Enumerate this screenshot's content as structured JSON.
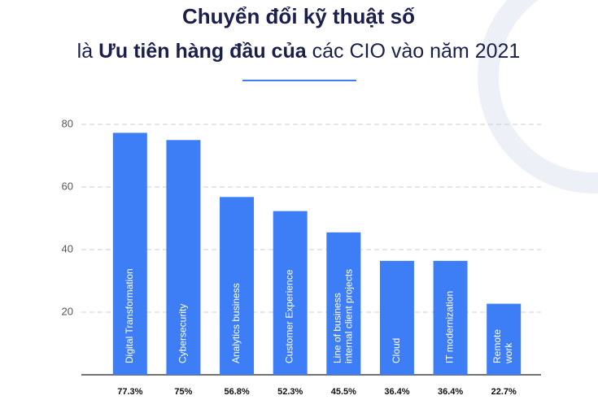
{
  "chart_data": {
    "type": "bar",
    "title": "Chuyển đổi kỹ thuật số",
    "subtitle_parts": [
      "là",
      "Ưu tiên hàng đầu của",
      "các CIO vào năm 2021"
    ],
    "categories": [
      [
        "Digital Transformation"
      ],
      [
        "Cybersecurity"
      ],
      [
        "Analytics business"
      ],
      [
        "Customer Experience"
      ],
      [
        "Line of business",
        "internal client projects"
      ],
      [
        "Cloud"
      ],
      [
        "IT modernization"
      ],
      [
        "Remote",
        "work"
      ]
    ],
    "values": [
      77.3,
      75,
      56.8,
      52.3,
      45.5,
      36.4,
      36.4,
      22.7
    ],
    "value_labels": [
      "77.3%",
      "75%",
      "56.8%",
      "52.3%",
      "45.5%",
      "36.4%",
      "36.4%",
      "22.7%"
    ],
    "color": "#3d7ef7",
    "ylim": [
      0,
      80
    ],
    "yticks": [
      20,
      40,
      60,
      80
    ],
    "grid": true
  }
}
